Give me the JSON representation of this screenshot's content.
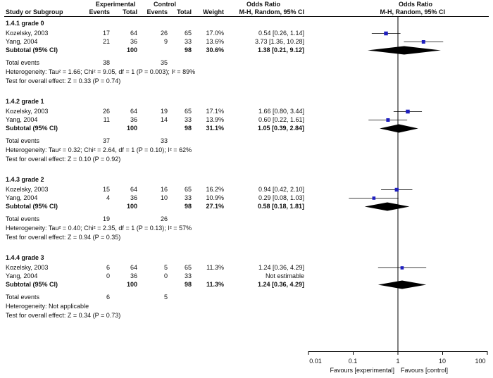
{
  "headers": {
    "study": "Study or Subgroup",
    "experimental": "Experimental",
    "control": "Control",
    "events": "Events",
    "total": "Total",
    "weight": "Weight",
    "or_group": "Odds Ratio",
    "or_method": "M-H, Random, 95% CI",
    "plot_group": "Odds Ratio",
    "plot_method": "M-H, Random, 95% CI"
  },
  "groups": [
    {
      "title": "1.4.1 grade 0",
      "studies": [
        {
          "name": "Kozelsky, 2003",
          "e_events": "17",
          "e_total": "64",
          "c_events": "26",
          "c_total": "65",
          "weight": "17.0%",
          "ci_text": "0.54 [0.26, 1.14]",
          "or": 0.54,
          "lo": 0.26,
          "hi": 1.14
        },
        {
          "name": "Yang, 2004",
          "e_events": "21",
          "e_total": "36",
          "c_events": "9",
          "c_total": "33",
          "weight": "13.6%",
          "ci_text": "3.73 [1.36, 10.28]",
          "or": 3.73,
          "lo": 1.36,
          "hi": 10.28
        }
      ],
      "subtotal": {
        "label": "Subtotal (95% CI)",
        "e_total": "100",
        "c_total": "98",
        "weight": "30.6%",
        "ci_text": "1.38 [0.21, 9.12]",
        "or": 1.38,
        "lo": 0.21,
        "hi": 9.12
      },
      "total_events": {
        "label": "Total events",
        "e": "38",
        "c": "35"
      },
      "heterogeneity": "Heterogeneity: Tau² = 1.66; Chi² = 9.05, df = 1 (P = 0.003); I² = 89%",
      "overall": "Test for overall effect: Z = 0.33 (P = 0.74)"
    },
    {
      "title": "1.4.2 grade 1",
      "studies": [
        {
          "name": "Kozelsky, 2003",
          "e_events": "26",
          "e_total": "64",
          "c_events": "19",
          "c_total": "65",
          "weight": "17.1%",
          "ci_text": "1.66 [0.80, 3.44]",
          "or": 1.66,
          "lo": 0.8,
          "hi": 3.44
        },
        {
          "name": "Yang, 2004",
          "e_events": "11",
          "e_total": "36",
          "c_events": "14",
          "c_total": "33",
          "weight": "13.9%",
          "ci_text": "0.60 [0.22, 1.61]",
          "or": 0.6,
          "lo": 0.22,
          "hi": 1.61
        }
      ],
      "subtotal": {
        "label": "Subtotal (95% CI)",
        "e_total": "100",
        "c_total": "98",
        "weight": "31.1%",
        "ci_text": "1.05 [0.39, 2.84]",
        "or": 1.05,
        "lo": 0.39,
        "hi": 2.84
      },
      "total_events": {
        "label": "Total events",
        "e": "37",
        "c": "33"
      },
      "heterogeneity": "Heterogeneity: Tau² = 0.32; Chi² = 2.64, df = 1 (P = 0.10); I² = 62%",
      "overall": "Test for overall effect: Z = 0.10 (P = 0.92)"
    },
    {
      "title": "1.4.3 grade 2",
      "studies": [
        {
          "name": "Kozelsky, 2003",
          "e_events": "15",
          "e_total": "64",
          "c_events": "16",
          "c_total": "65",
          "weight": "16.2%",
          "ci_text": "0.94 [0.42, 2.10]",
          "or": 0.94,
          "lo": 0.42,
          "hi": 2.1
        },
        {
          "name": "Yang, 2004",
          "e_events": "4",
          "e_total": "36",
          "c_events": "10",
          "c_total": "33",
          "weight": "10.9%",
          "ci_text": "0.29 [0.08, 1.03]",
          "or": 0.29,
          "lo": 0.08,
          "hi": 1.03
        }
      ],
      "subtotal": {
        "label": "Subtotal (95% CI)",
        "e_total": "100",
        "c_total": "98",
        "weight": "27.1%",
        "ci_text": "0.58 [0.18, 1.81]",
        "or": 0.58,
        "lo": 0.18,
        "hi": 1.81
      },
      "total_events": {
        "label": "Total events",
        "e": "19",
        "c": "26"
      },
      "heterogeneity": "Heterogeneity: Tau² = 0.40; Chi² = 2.35, df = 1 (P = 0.13); I² = 57%",
      "overall": "Test for overall effect: Z = 0.94 (P = 0.35)"
    },
    {
      "title": "1.4.4 grade 3",
      "studies": [
        {
          "name": "Kozelsky, 2003",
          "e_events": "6",
          "e_total": "64",
          "c_events": "5",
          "c_total": "65",
          "weight": "11.3%",
          "ci_text": "1.24 [0.36, 4.29]",
          "or": 1.24,
          "lo": 0.36,
          "hi": 4.29
        },
        {
          "name": "Yang, 2004",
          "e_events": "0",
          "e_total": "36",
          "c_events": "0",
          "c_total": "33",
          "weight": "",
          "ci_text": "Not estimable",
          "or": null,
          "lo": null,
          "hi": null
        }
      ],
      "subtotal": {
        "label": "Subtotal (95% CI)",
        "e_total": "100",
        "c_total": "98",
        "weight": "11.3%",
        "ci_text": "1.24 [0.36, 4.29]",
        "or": 1.24,
        "lo": 0.36,
        "hi": 4.29
      },
      "total_events": {
        "label": "Total events",
        "e": "6",
        "c": "5"
      },
      "heterogeneity": "Heterogeneity: Not applicable",
      "overall": "Test for overall effect: Z = 0.34 (P = 0.73)"
    }
  ],
  "chart_data": {
    "type": "scatter",
    "title": "Odds Ratio M-H, Random, 95% CI",
    "x_scale": "log",
    "xlim": [
      0.01,
      100
    ],
    "ticks": [
      0.01,
      0.1,
      1,
      10,
      100
    ],
    "tick_labels": [
      "0.01",
      "0.1",
      "1",
      "10",
      "100"
    ],
    "xlabel_left": "Favours [experimental]",
    "xlabel_right": "Favours [control]",
    "reference_line": 1
  },
  "colors": {
    "marker": "#1f1fbf",
    "diamond": "#000000",
    "line": "#000000"
  }
}
